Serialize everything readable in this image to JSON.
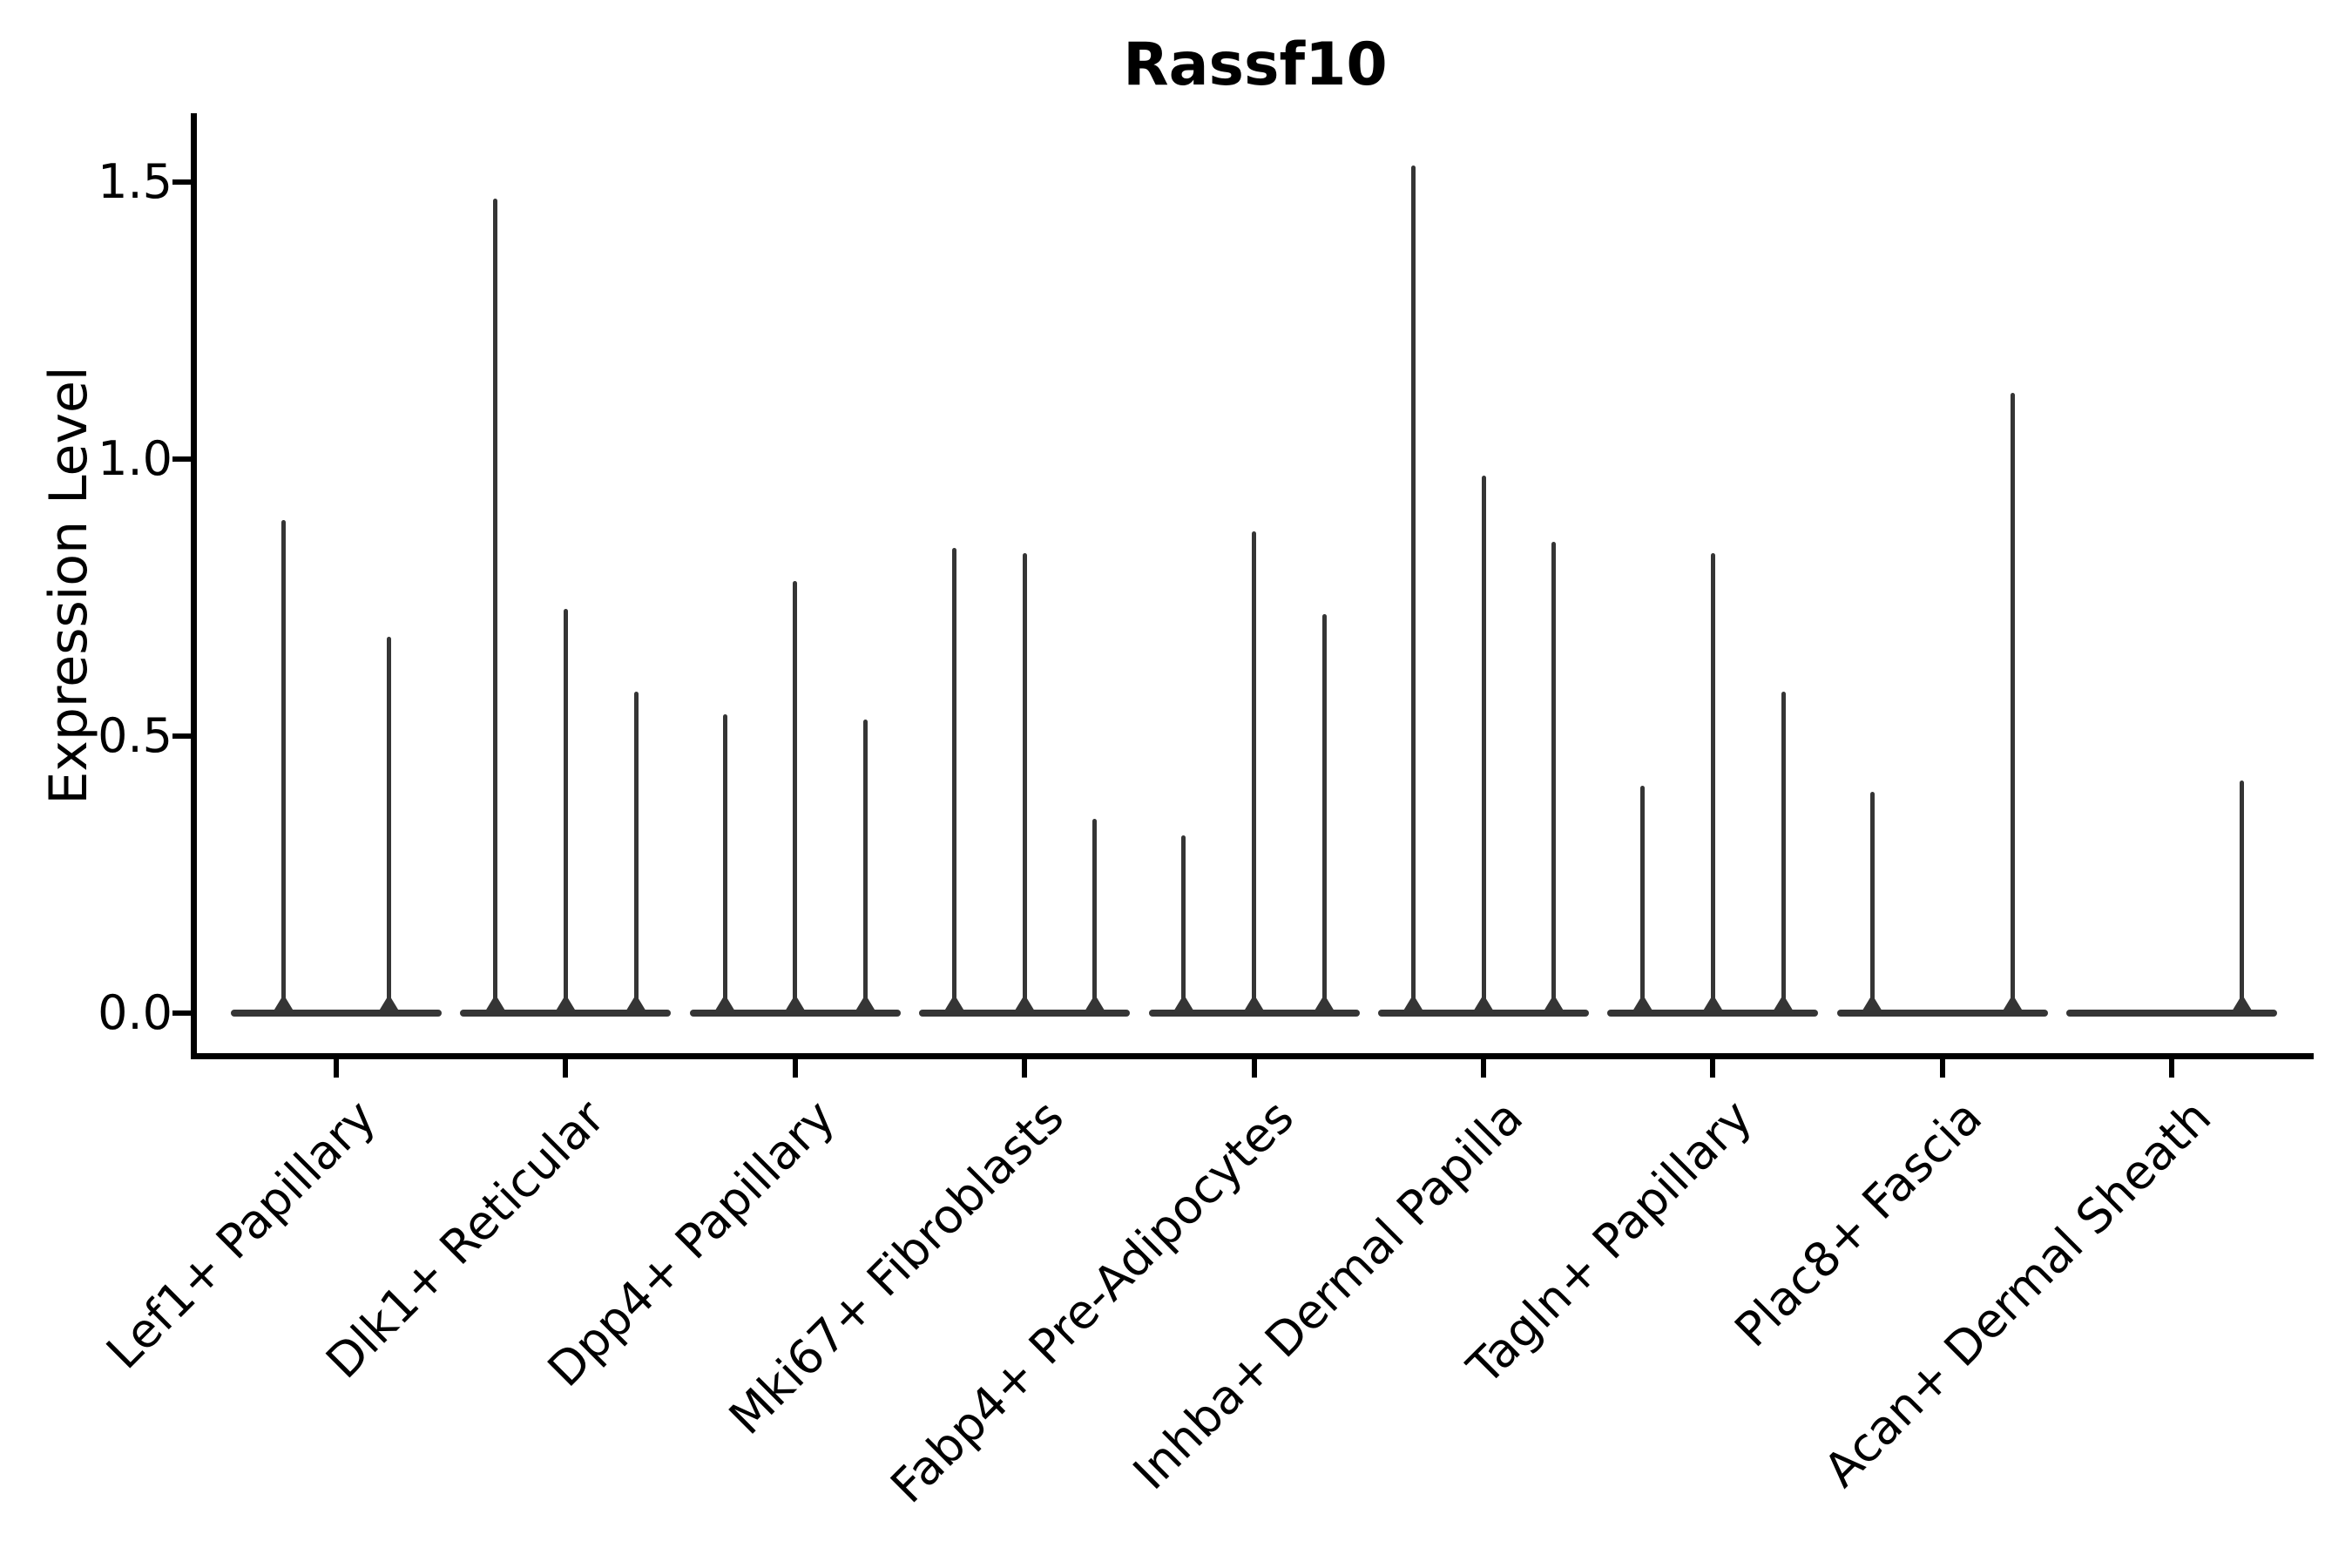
{
  "figure": {
    "background": "#ffffff"
  },
  "chart_data": {
    "type": "violin",
    "title": "Rassf10",
    "ylabel": "Expression Level",
    "xlabel": "",
    "ylim": [
      -0.07,
      1.62
    ],
    "grid": false,
    "legend": null,
    "marks_color": "#353535",
    "axis_color": "#000000",
    "yticks": [
      {
        "label": "0.0",
        "value": 0.0
      },
      {
        "label": "0.5",
        "value": 0.5
      },
      {
        "label": "1.0",
        "value": 1.0
      },
      {
        "label": "1.5",
        "value": 1.5
      }
    ],
    "categories": [
      {
        "label": "Lef1+ Papillary",
        "violin_maxima": [
          0.89,
          0.68
        ]
      },
      {
        "label": "Dlk1+ Reticular",
        "violin_maxima": [
          1.47,
          0.73,
          0.58
        ]
      },
      {
        "label": "Dpp4+ Papillary",
        "violin_maxima": [
          0.54,
          0.78,
          0.53
        ]
      },
      {
        "label": "Mki67+ Fibroblasts",
        "violin_maxima": [
          0.84,
          0.83,
          0.35
        ]
      },
      {
        "label": "Fabp4+ Pre-Adipocytes",
        "violin_maxima": [
          0.32,
          0.87,
          0.72
        ]
      },
      {
        "label": "Inhba+ Dermal Papilla",
        "violin_maxima": [
          1.53,
          0.97,
          0.85
        ]
      },
      {
        "label": "Tagln+ Papillary",
        "violin_maxima": [
          0.41,
          0.83,
          0.58
        ]
      },
      {
        "label": "Plac8+ Fascia",
        "violin_maxima": [
          0.4,
          0.0,
          1.12
        ]
      },
      {
        "label": "Acan+ Dermal Sheath",
        "violin_maxima": [
          0.0,
          0.0,
          0.42
        ]
      }
    ]
  }
}
